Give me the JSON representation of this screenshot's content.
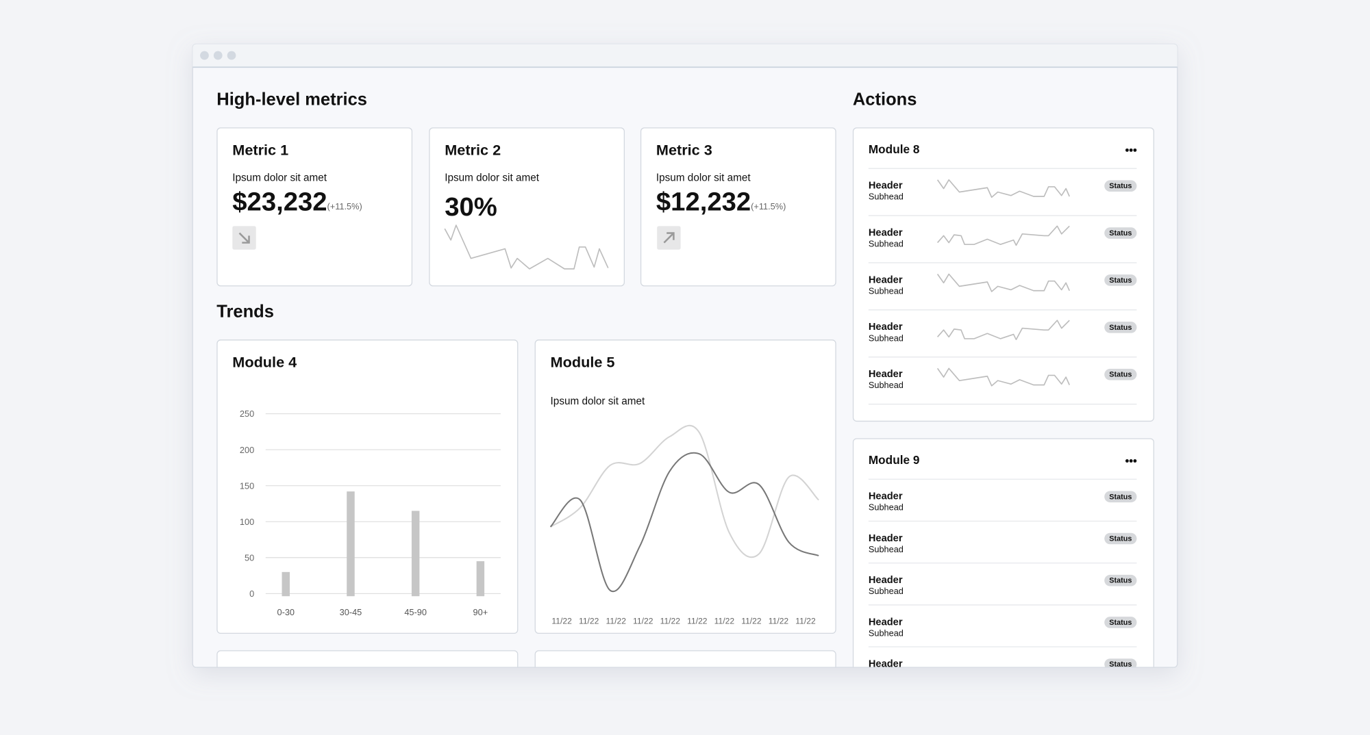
{
  "metrics": {
    "title": "High-level metrics",
    "cards": [
      {
        "title": "Metric 1",
        "label": "Ipsum dolor sit amet",
        "value": "$23,232",
        "change": "(+11.5%)"
      },
      {
        "title": "Metric 2",
        "label": "Ipsum dolor sit amet",
        "value": "30%"
      },
      {
        "title": "Metric 3",
        "label": "Ipsum dolor sit amet",
        "value": "$12,232",
        "change": "(+11.5%)"
      }
    ]
  },
  "trends": {
    "title": "Trends"
  },
  "chart_data": [
    {
      "type": "bar",
      "title": "Module 4",
      "categories": [
        "0-30",
        "30-45",
        "45-90",
        "90+"
      ],
      "values": [
        30,
        142,
        115,
        45
      ],
      "color": "#c6c6c6",
      "ylim": [
        0,
        250
      ],
      "yticks": [
        0,
        50,
        100,
        150,
        200,
        250
      ],
      "grid": true
    },
    {
      "type": "line",
      "title": "Module 5",
      "subtitle": "Ipsum dolor sit amet",
      "categories": [
        "11/22",
        "11/22",
        "11/22",
        "11/22",
        "11/22",
        "11/22",
        "11/22",
        "11/22",
        "11/22",
        "11/22"
      ],
      "series": [
        {
          "color": "#d3d3d3",
          "values": [
            37,
            47,
            69,
            70,
            84,
            86,
            34,
            23,
            63,
            51
          ]
        },
        {
          "color": "#777777",
          "values": [
            37,
            51,
            4,
            27,
            66,
            75,
            55,
            59,
            29,
            22
          ]
        }
      ],
      "ylim": [
        0,
        100
      ]
    }
  ],
  "actions": {
    "title": "Actions",
    "modules": [
      {
        "title": "Module 8",
        "rows": [
          {
            "header": "Header",
            "subhead": "Subhead",
            "status": "Status"
          },
          {
            "header": "Header",
            "subhead": "Subhead",
            "status": "Status"
          },
          {
            "header": "Header",
            "subhead": "Subhead",
            "status": "Status"
          },
          {
            "header": "Header",
            "subhead": "Subhead",
            "status": "Status"
          },
          {
            "header": "Header",
            "subhead": "Subhead",
            "status": "Status"
          }
        ]
      },
      {
        "title": "Module 9",
        "rows": [
          {
            "header": "Header",
            "subhead": "Subhead",
            "status": "Status"
          },
          {
            "header": "Header",
            "subhead": "Subhead",
            "status": "Status"
          },
          {
            "header": "Header",
            "subhead": "Subhead",
            "status": "Status"
          },
          {
            "header": "Header",
            "subhead": "Subhead",
            "status": "Status"
          },
          {
            "header": "Header",
            "status": "Status"
          }
        ]
      }
    ]
  }
}
